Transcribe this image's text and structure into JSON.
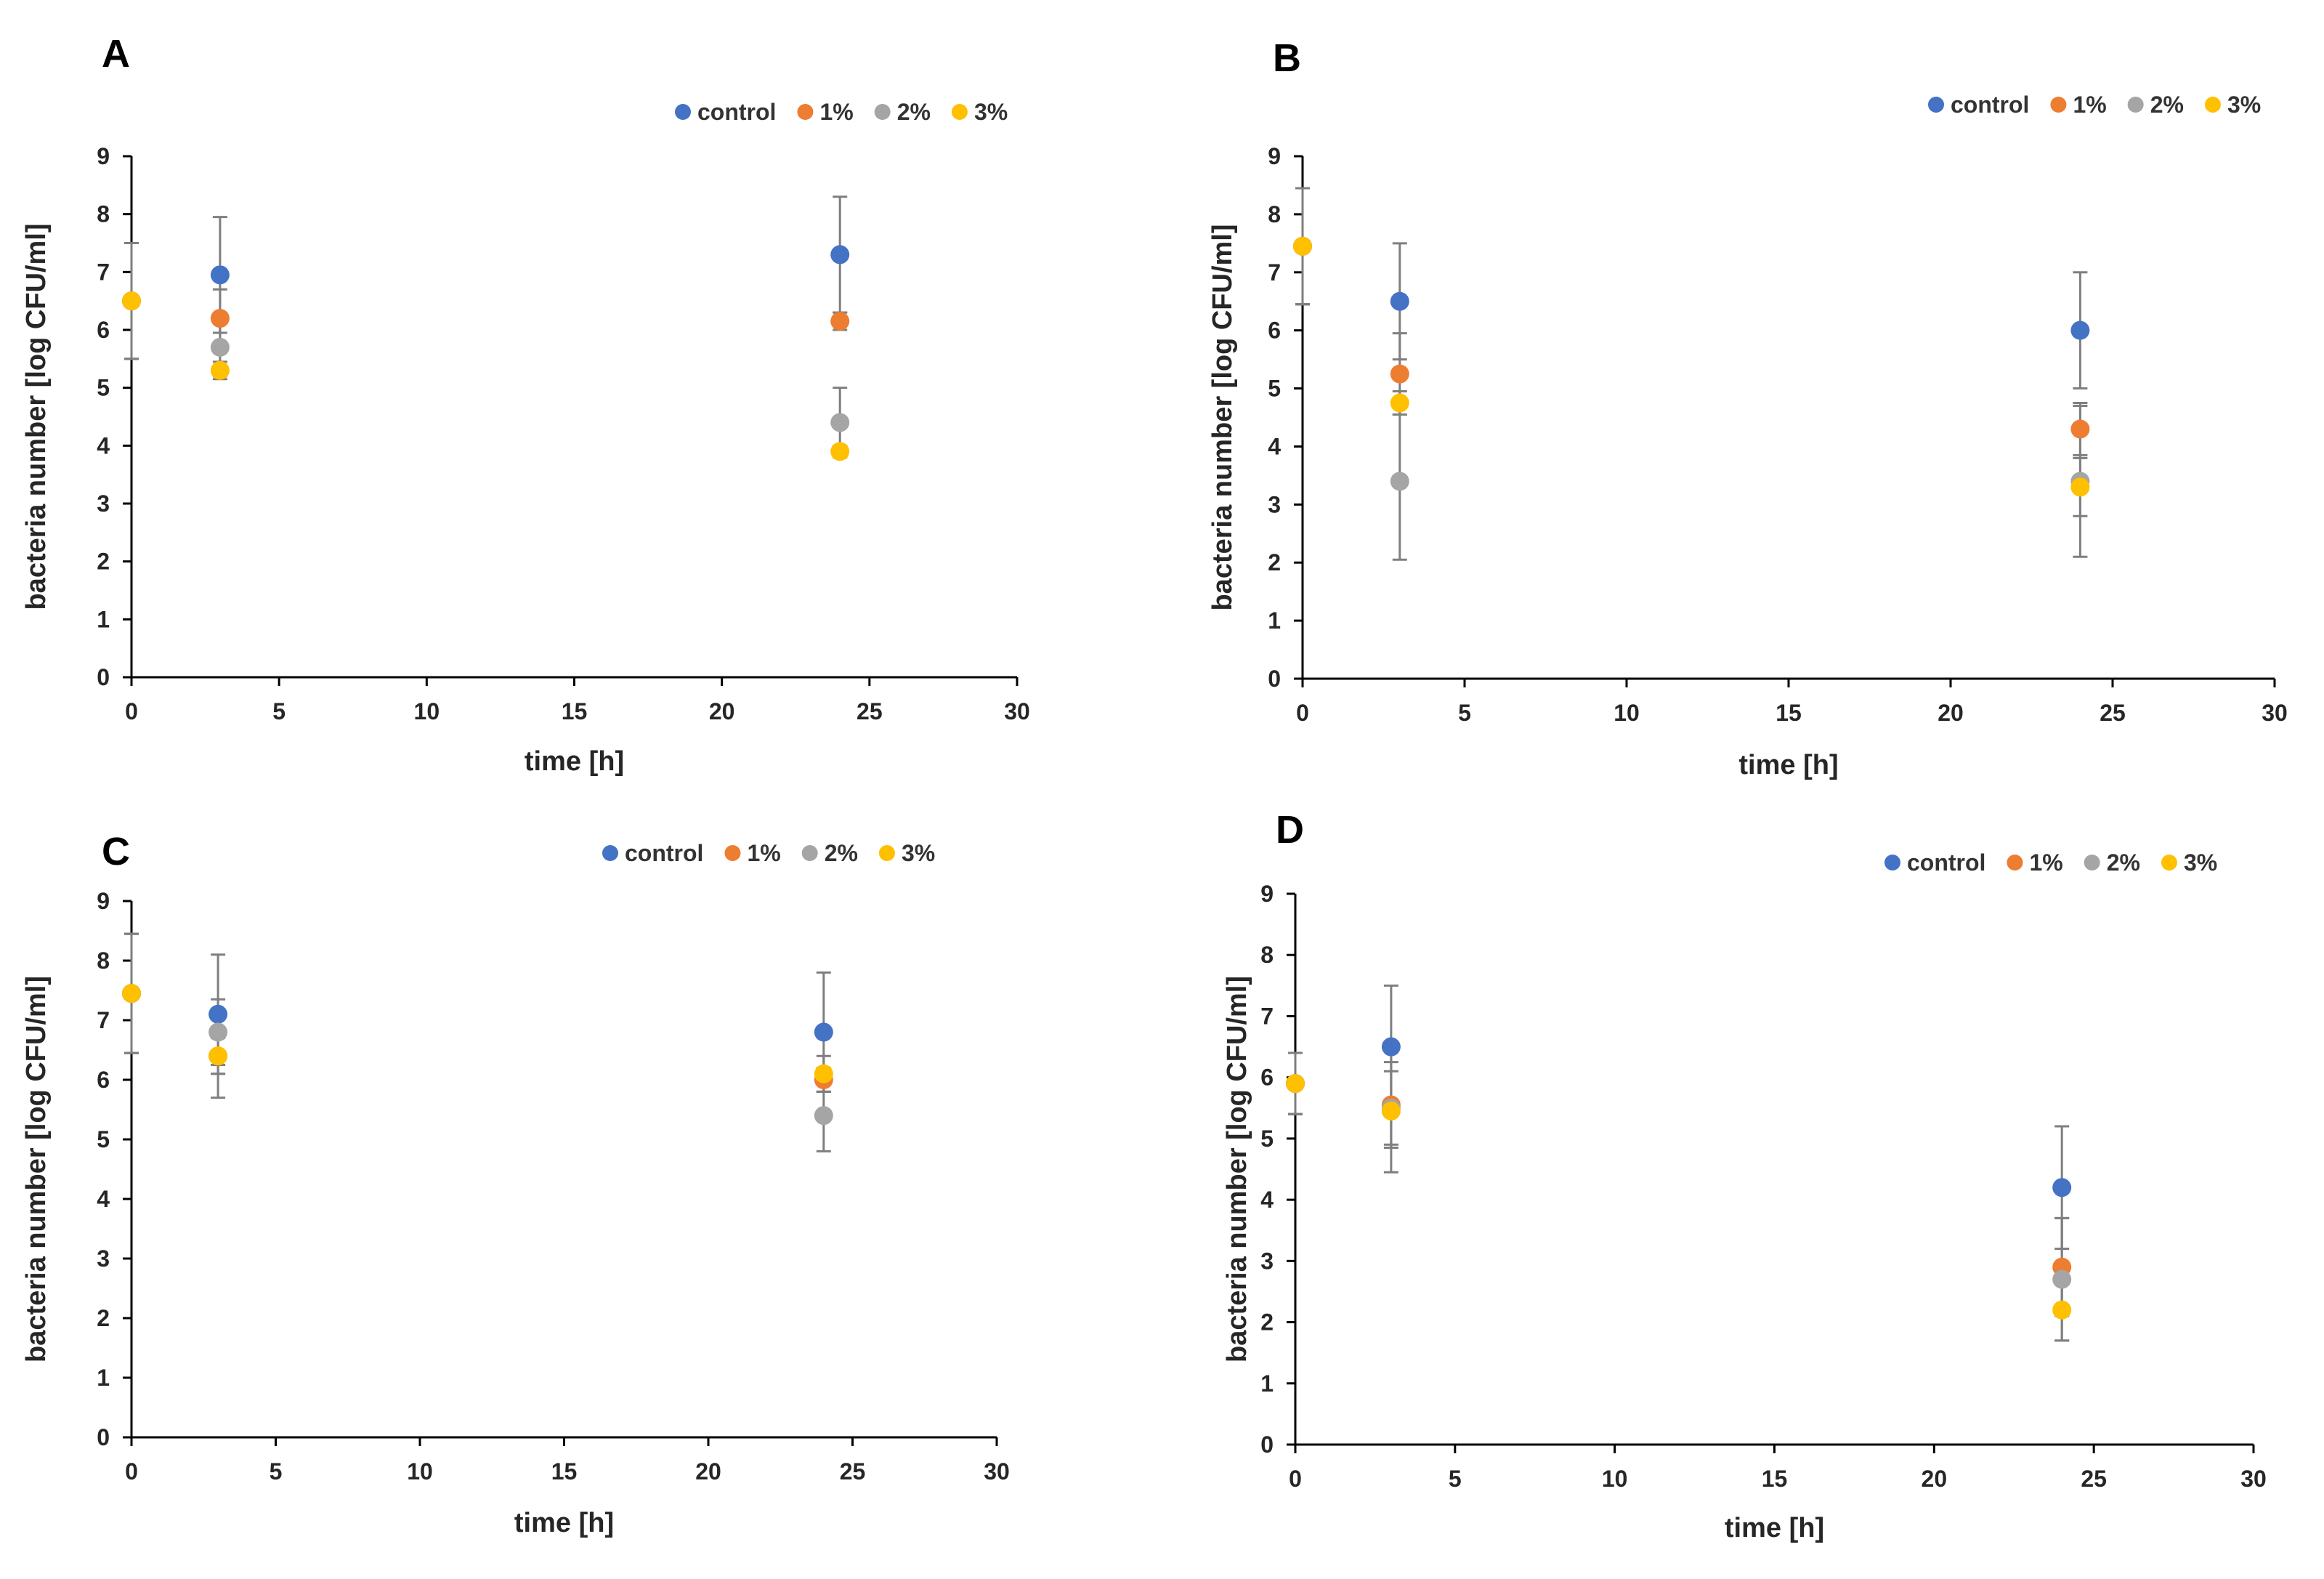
{
  "figure": {
    "legend": {
      "control": "control",
      "p1": "1%",
      "p2": "2%",
      "p3": "3%"
    }
  },
  "chart_data": [
    {
      "type": "scatter",
      "panel": "A",
      "title": "A",
      "xlabel": "time [h]",
      "ylabel": "bacteria number [log CFU/ml]",
      "xlim": [
        0,
        30
      ],
      "ylim": [
        0,
        9
      ],
      "xticks": [
        0,
        5,
        10,
        15,
        20,
        25,
        30
      ],
      "yticks": [
        0,
        1,
        2,
        3,
        4,
        5,
        6,
        7,
        8,
        9
      ],
      "legend_position": "top-right",
      "series": [
        {
          "name": "control",
          "color": "#4472C4",
          "points": [
            {
              "x": 0,
              "y": 6.5,
              "err": 1.0
            },
            {
              "x": 3,
              "y": 6.95,
              "err": 1.0
            },
            {
              "x": 24,
              "y": 7.3,
              "err": 1.0
            }
          ]
        },
        {
          "name": "1%",
          "color": "#ED7D31",
          "points": [
            {
              "x": 0,
              "y": 6.5,
              "err": 1.0
            },
            {
              "x": 3,
              "y": 6.2,
              "err": 0.5
            },
            {
              "x": 24,
              "y": 6.15,
              "err": 0.15
            }
          ]
        },
        {
          "name": "2%",
          "color": "#A5A5A5",
          "points": [
            {
              "x": 0,
              "y": 6.5,
              "err": 1.0
            },
            {
              "x": 3,
              "y": 5.7,
              "err": 0.5
            },
            {
              "x": 24,
              "y": 4.4,
              "err": 0.6
            }
          ]
        },
        {
          "name": "3%",
          "color": "#FFC000",
          "points": [
            {
              "x": 0,
              "y": 6.5,
              "err": 1.0
            },
            {
              "x": 3,
              "y": 5.3,
              "err": 0.15
            },
            {
              "x": 24,
              "y": 3.9,
              "err": 0.1
            }
          ]
        }
      ]
    },
    {
      "type": "scatter",
      "panel": "B",
      "title": "B",
      "xlabel": "time [h]",
      "ylabel": "bacteria number [log CFU/ml]",
      "xlim": [
        0,
        30
      ],
      "ylim": [
        0,
        9
      ],
      "xticks": [
        0,
        5,
        10,
        15,
        20,
        25,
        30
      ],
      "yticks": [
        0,
        1,
        2,
        3,
        4,
        5,
        6,
        7,
        8,
        9
      ],
      "legend_position": "top-right",
      "series": [
        {
          "name": "control",
          "color": "#4472C4",
          "points": [
            {
              "x": 0,
              "y": 7.45,
              "err": 1.0
            },
            {
              "x": 3,
              "y": 6.5,
              "err": 1.0
            },
            {
              "x": 24,
              "y": 6.0,
              "err": 1.0
            }
          ]
        },
        {
          "name": "1%",
          "color": "#ED7D31",
          "points": [
            {
              "x": 0,
              "y": 7.45,
              "err": 1.0
            },
            {
              "x": 3,
              "y": 5.25,
              "err": 0.7
            },
            {
              "x": 24,
              "y": 4.3,
              "err": 0.45
            }
          ]
        },
        {
          "name": "2%",
          "color": "#A5A5A5",
          "points": [
            {
              "x": 0,
              "y": 7.45,
              "err": 1.0
            },
            {
              "x": 3,
              "y": 3.4,
              "err": 1.35
            },
            {
              "x": 24,
              "y": 3.4,
              "err": 1.3
            }
          ]
        },
        {
          "name": "3%",
          "color": "#FFC000",
          "points": [
            {
              "x": 0,
              "y": 7.45,
              "err": 1.0
            },
            {
              "x": 3,
              "y": 4.75,
              "err": 0.2
            },
            {
              "x": 24,
              "y": 3.3,
              "err": 0.5
            }
          ]
        }
      ]
    },
    {
      "type": "scatter",
      "panel": "C",
      "title": "C",
      "xlabel": "time [h]",
      "ylabel": "bacteria number [log CFU/ml]",
      "xlim": [
        0,
        30
      ],
      "ylim": [
        0,
        9
      ],
      "xticks": [
        0,
        5,
        10,
        15,
        20,
        25,
        30
      ],
      "yticks": [
        0,
        1,
        2,
        3,
        4,
        5,
        6,
        7,
        8,
        9
      ],
      "legend_position": "top-right",
      "series": [
        {
          "name": "control",
          "color": "#4472C4",
          "points": [
            {
              "x": 0,
              "y": 7.45,
              "err": 1.0
            },
            {
              "x": 3,
              "y": 7.1,
              "err": 1.0
            },
            {
              "x": 24,
              "y": 6.8,
              "err": 1.0
            }
          ]
        },
        {
          "name": "1%",
          "color": "#ED7D31",
          "points": [
            {
              "x": 0,
              "y": 7.45,
              "err": 1.0
            },
            {
              "x": 3,
              "y": 6.4,
              "err": 0.3
            },
            {
              "x": 24,
              "y": 6.0,
              "err": 0.2
            }
          ]
        },
        {
          "name": "2%",
          "color": "#A5A5A5",
          "points": [
            {
              "x": 0,
              "y": 7.45,
              "err": 1.0
            },
            {
              "x": 3,
              "y": 6.8,
              "err": 0.55
            },
            {
              "x": 24,
              "y": 5.4,
              "err": 0.6
            }
          ]
        },
        {
          "name": "3%",
          "color": "#FFC000",
          "points": [
            {
              "x": 0,
              "y": 7.45,
              "err": 1.0
            },
            {
              "x": 3,
              "y": 6.4,
              "err": 0.7
            },
            {
              "x": 24,
              "y": 6.1,
              "err": 0.3
            }
          ]
        }
      ]
    },
    {
      "type": "scatter",
      "panel": "D",
      "title": "D",
      "xlabel": "time [h]",
      "ylabel": "bacteria number [log CFU/ml]",
      "xlim": [
        0,
        30
      ],
      "ylim": [
        0,
        9
      ],
      "xticks": [
        0,
        5,
        10,
        15,
        20,
        25,
        30
      ],
      "yticks": [
        0,
        1,
        2,
        3,
        4,
        5,
        6,
        7,
        8,
        9
      ],
      "legend_position": "top-right",
      "series": [
        {
          "name": "control",
          "color": "#4472C4",
          "points": [
            {
              "x": 0,
              "y": 5.9,
              "err": 0.5
            },
            {
              "x": 3,
              "y": 6.5,
              "err": 1.0
            },
            {
              "x": 24,
              "y": 4.2,
              "err": 1.0
            }
          ]
        },
        {
          "name": "1%",
          "color": "#ED7D31",
          "points": [
            {
              "x": 0,
              "y": 5.9,
              "err": 0.5
            },
            {
              "x": 3,
              "y": 5.55,
              "err": 0.7
            },
            {
              "x": 24,
              "y": 2.9,
              "err": 0.8
            }
          ]
        },
        {
          "name": "2%",
          "color": "#A5A5A5",
          "points": [
            {
              "x": 0,
              "y": 5.9,
              "err": 0.5
            },
            {
              "x": 3,
              "y": 5.5,
              "err": 0.6
            },
            {
              "x": 24,
              "y": 2.7,
              "err": 1.0
            }
          ]
        },
        {
          "name": "3%",
          "color": "#FFC000",
          "points": [
            {
              "x": 0,
              "y": 5.9,
              "err": 0.5
            },
            {
              "x": 3,
              "y": 5.45,
              "err": 1.0
            },
            {
              "x": 24,
              "y": 2.2,
              "err": 0.5
            }
          ]
        }
      ]
    }
  ]
}
